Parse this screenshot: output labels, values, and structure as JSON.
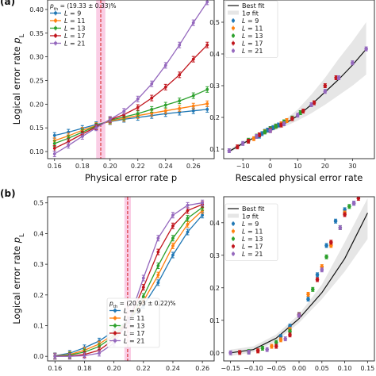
{
  "panel_labels": [
    "(a)",
    "(b)"
  ],
  "colors": {
    "L9": "#1f77b4",
    "L11": "#ff7f0e",
    "L13": "#2ca02c",
    "L17": "#c0141b",
    "L21": "#9467bd",
    "threshold": "#d62728",
    "band": "#f9c4e0",
    "fit_band": "#e6e6e6"
  },
  "chart_data": [
    {
      "id": "a-left",
      "type": "line",
      "xlabel": "Physical error rate p",
      "ylabel": "Logical error rate p_L",
      "xlim": [
        0.155,
        0.275
      ],
      "ylim": [
        0.085,
        0.42
      ],
      "xticks": [
        0.16,
        0.18,
        0.2,
        0.22,
        0.24,
        0.26
      ],
      "xtick_labels": [
        "0.16",
        "0.18",
        "0.20",
        "0.22",
        "0.24",
        "0.26"
      ],
      "yticks": [
        0.1,
        0.15,
        0.2,
        0.25,
        0.3,
        0.35,
        0.4
      ],
      "ytick_labels": [
        "0.10",
        "0.15",
        "0.20",
        "0.25",
        "0.30",
        "0.35",
        "0.40"
      ],
      "threshold_label": "p_th = (19.33 ± 0.33)%",
      "threshold": 0.1933,
      "threshold_band": [
        0.19,
        0.1966
      ],
      "legend_position": "top-left",
      "x": [
        0.16,
        0.17,
        0.18,
        0.19,
        0.2,
        0.21,
        0.22,
        0.23,
        0.24,
        0.25,
        0.26,
        0.27
      ],
      "series": [
        {
          "name": "L = 9",
          "color_key": "L9",
          "values": [
            0.134,
            0.141,
            0.149,
            0.157,
            0.163,
            0.168,
            0.172,
            0.176,
            0.18,
            0.183,
            0.186,
            0.189
          ]
        },
        {
          "name": "L = 11",
          "color_key": "L11",
          "values": [
            0.123,
            0.133,
            0.145,
            0.155,
            0.164,
            0.17,
            0.176,
            0.181,
            0.186,
            0.191,
            0.196,
            0.201
          ]
        },
        {
          "name": "L = 13",
          "color_key": "L13",
          "values": [
            0.117,
            0.128,
            0.141,
            0.154,
            0.166,
            0.173,
            0.18,
            0.189,
            0.198,
            0.207,
            0.218,
            0.231
          ]
        },
        {
          "name": "L = 17",
          "color_key": "L17",
          "values": [
            0.107,
            0.121,
            0.137,
            0.152,
            0.167,
            0.178,
            0.193,
            0.213,
            0.236,
            0.262,
            0.295,
            0.325
          ]
        },
        {
          "name": "L = 21",
          "color_key": "L21",
          "values": [
            0.095,
            0.113,
            0.132,
            0.15,
            0.168,
            0.185,
            0.211,
            0.243,
            0.282,
            0.325,
            0.372,
            0.416
          ]
        }
      ]
    },
    {
      "id": "a-right",
      "type": "scatter",
      "xlabel": "Rescaled physical error rate",
      "ylabel": "",
      "xlim": [
        -17,
        38
      ],
      "ylim": [
        0.07,
        0.57
      ],
      "xticks": [
        -10,
        0,
        10,
        20,
        30
      ],
      "xtick_labels": [
        "−10",
        "0",
        "10",
        "20",
        "30"
      ],
      "yticks": [
        0.1,
        0.2,
        0.3,
        0.4,
        0.5
      ],
      "ytick_labels": [
        "0.1",
        "0.2",
        "0.3",
        "0.4",
        "0.5"
      ],
      "legend_position": "top-left",
      "fit_label": "Best fit",
      "band_label": "1σ fit",
      "fit_curve": {
        "x": [
          -15,
          -10,
          -5,
          0,
          5,
          10,
          15,
          20,
          25,
          30,
          35
        ],
        "y": [
          0.093,
          0.118,
          0.14,
          0.158,
          0.179,
          0.205,
          0.24,
          0.28,
          0.32,
          0.365,
          0.415
        ]
      },
      "band_lower": [
        0.088,
        0.113,
        0.136,
        0.154,
        0.17,
        0.19,
        0.213,
        0.24,
        0.27,
        0.3,
        0.335
      ],
      "band_upper": [
        0.099,
        0.124,
        0.145,
        0.163,
        0.19,
        0.225,
        0.272,
        0.325,
        0.385,
        0.44,
        0.5
      ],
      "series": [
        {
          "name": "L = 9",
          "color_key": "L9",
          "x": [
            -4,
            -3,
            -2,
            -1,
            0,
            1,
            2,
            3
          ],
          "y": [
            0.141,
            0.149,
            0.156,
            0.16,
            0.165,
            0.168,
            0.173,
            0.176
          ]
        },
        {
          "name": "L = 11",
          "color_key": "L11",
          "x": [
            -6,
            -4,
            -2,
            0,
            2,
            4,
            6
          ],
          "y": [
            0.133,
            0.145,
            0.155,
            0.164,
            0.172,
            0.18,
            0.19
          ]
        },
        {
          "name": "L = 13",
          "color_key": "L13",
          "x": [
            -8,
            -5,
            -2,
            0,
            2,
            5,
            8,
            11
          ],
          "y": [
            0.128,
            0.141,
            0.154,
            0.164,
            0.172,
            0.186,
            0.198,
            0.215
          ]
        },
        {
          "name": "L = 17",
          "color_key": "L17",
          "x": [
            -12,
            -8,
            -4,
            0,
            4,
            8,
            12,
            16,
            20,
            24
          ],
          "y": [
            0.107,
            0.125,
            0.145,
            0.16,
            0.176,
            0.196,
            0.22,
            0.246,
            0.3,
            0.325
          ]
        },
        {
          "name": "L = 21",
          "color_key": "L21",
          "x": [
            -15,
            -10,
            -5,
            0,
            5,
            10,
            15,
            20,
            25,
            30,
            35
          ],
          "y": [
            0.095,
            0.118,
            0.14,
            0.158,
            0.18,
            0.207,
            0.24,
            0.282,
            0.325,
            0.372,
            0.416
          ]
        }
      ]
    },
    {
      "id": "b-left",
      "type": "line",
      "xlabel": "",
      "ylabel": "Logical error rate p_L",
      "xlim": [
        0.155,
        0.268
      ],
      "ylim": [
        -0.015,
        0.52
      ],
      "xticks": [
        0.16,
        0.18,
        0.2,
        0.22,
        0.24,
        0.26
      ],
      "xtick_labels": [
        "0.16",
        "0.18",
        "0.20",
        "0.22",
        "0.24",
        "0.26"
      ],
      "yticks": [
        0.0,
        0.1,
        0.2,
        0.3,
        0.4,
        0.5
      ],
      "ytick_labels": [
        "0.0",
        "0.1",
        "0.2",
        "0.3",
        "0.4",
        "0.5"
      ],
      "threshold_label": "p_th = (20.93 ± 0.22)%",
      "threshold": 0.2093,
      "threshold_band": [
        0.2071,
        0.2115
      ],
      "legend_position": "bottom-center",
      "x": [
        0.16,
        0.17,
        0.18,
        0.19,
        0.2,
        0.21,
        0.22,
        0.23,
        0.24,
        0.25,
        0.26
      ],
      "series": [
        {
          "name": "L = 9",
          "color_key": "L9",
          "values": [
            0.002,
            0.01,
            0.028,
            0.05,
            0.082,
            0.118,
            0.165,
            0.24,
            0.33,
            0.405,
            0.46
          ]
        },
        {
          "name": "L = 11",
          "color_key": "L11",
          "values": [
            0.001,
            0.006,
            0.02,
            0.04,
            0.072,
            0.117,
            0.18,
            0.265,
            0.36,
            0.43,
            0.475
          ]
        },
        {
          "name": "L = 13",
          "color_key": "L13",
          "values": [
            0.0,
            0.004,
            0.014,
            0.032,
            0.066,
            0.116,
            0.195,
            0.295,
            0.385,
            0.45,
            0.485
          ]
        },
        {
          "name": "L = 17",
          "color_key": "L17",
          "values": [
            0.0,
            0.001,
            0.006,
            0.02,
            0.055,
            0.116,
            0.225,
            0.34,
            0.425,
            0.475,
            0.495
          ]
        },
        {
          "name": "L = 21",
          "color_key": "L21",
          "values": [
            0.0,
            0.0,
            0.002,
            0.01,
            0.043,
            0.115,
            0.255,
            0.385,
            0.46,
            0.492,
            0.5
          ]
        }
      ]
    },
    {
      "id": "b-right",
      "type": "scatter",
      "xlabel": "",
      "ylabel": "",
      "xlim": [
        -0.165,
        0.165
      ],
      "ylim": [
        -0.025,
        0.48
      ],
      "xticks": [
        -0.15,
        -0.1,
        -0.05,
        0.0,
        0.05,
        0.1,
        0.15
      ],
      "xtick_labels": [
        "−0.15",
        "−0.10",
        "−0.05",
        "0.00",
        "0.05",
        "0.10",
        "0.15"
      ],
      "yticks": [
        0.0,
        0.1,
        0.2,
        0.3,
        0.4
      ],
      "ytick_labels": [
        "0.0",
        "0.1",
        "0.2",
        "0.3",
        "0.4"
      ],
      "legend_position": "top-left",
      "fit_label": "Best fit",
      "band_label": "1σ fit",
      "fit_curve": {
        "x": [
          -0.15,
          -0.1,
          -0.05,
          0.0,
          0.05,
          0.1,
          0.15
        ],
        "y": [
          0.0,
          0.01,
          0.045,
          0.105,
          0.185,
          0.29,
          0.43
        ]
      },
      "band_lower": [
        -0.01,
        0.002,
        0.035,
        0.092,
        0.165,
        0.25,
        0.35
      ],
      "band_upper": [
        0.01,
        0.02,
        0.056,
        0.118,
        0.21,
        0.34,
        0.475
      ],
      "series": [
        {
          "name": "L = 9",
          "color_key": "L9",
          "x": [
            -0.04,
            -0.02,
            0.0,
            0.02,
            0.04,
            0.06,
            0.08,
            0.1,
            0.12
          ],
          "y": [
            0.05,
            0.082,
            0.118,
            0.165,
            0.24,
            0.33,
            0.405,
            0.44,
            0.46
          ]
        },
        {
          "name": "L = 11",
          "color_key": "L11",
          "x": [
            -0.09,
            -0.06,
            -0.04,
            -0.02,
            0.0,
            0.02,
            0.05,
            0.07,
            0.1
          ],
          "y": [
            0.006,
            0.02,
            0.04,
            0.072,
            0.117,
            0.18,
            0.265,
            0.33,
            0.43
          ]
        },
        {
          "name": "L = 13",
          "color_key": "L13",
          "x": [
            -0.11,
            -0.08,
            -0.05,
            -0.02,
            0.0,
            0.03,
            0.06,
            0.09,
            0.11
          ],
          "y": [
            0.004,
            0.014,
            0.032,
            0.066,
            0.116,
            0.195,
            0.295,
            0.385,
            0.45
          ]
        },
        {
          "name": "L = 17",
          "color_key": "L17",
          "x": [
            -0.13,
            -0.09,
            -0.05,
            -0.02,
            0.0,
            0.04,
            0.07,
            0.1,
            0.13
          ],
          "y": [
            0.001,
            0.006,
            0.02,
            0.055,
            0.116,
            0.225,
            0.34,
            0.425,
            0.475
          ]
        },
        {
          "name": "L = 21",
          "color_key": "L21",
          "x": [
            -0.15,
            -0.11,
            -0.07,
            -0.03,
            0.0,
            0.05,
            0.09,
            0.12,
            0.15
          ],
          "y": [
            0.0,
            0.002,
            0.01,
            0.043,
            0.115,
            0.255,
            0.385,
            0.46,
            0.492
          ]
        }
      ]
    }
  ]
}
